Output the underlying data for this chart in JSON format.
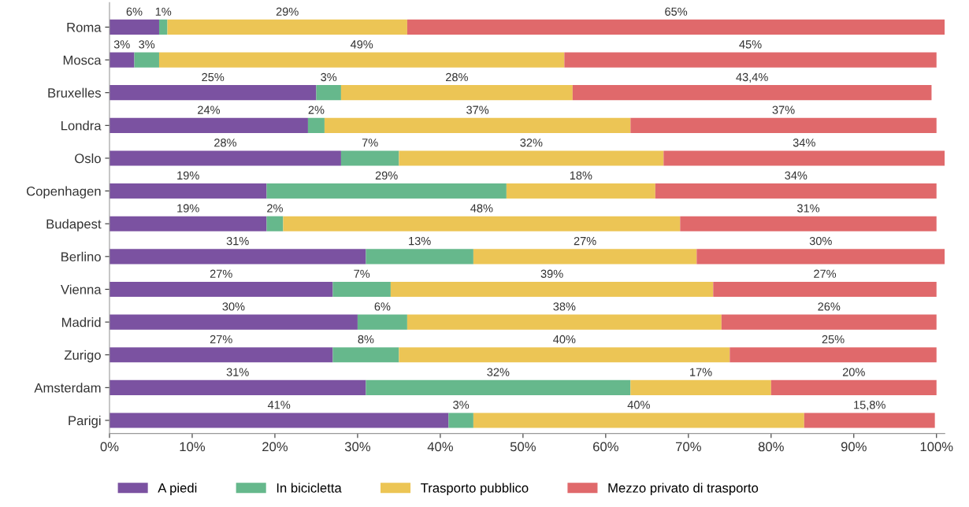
{
  "chart_data": {
    "type": "bar",
    "orientation": "horizontal",
    "stacked": true,
    "categories": [
      "Roma",
      "Mosca",
      "Bruxelles",
      "Londra",
      "Oslo",
      "Copenhagen",
      "Budapest",
      "Berlino",
      "Vienna",
      "Madrid",
      "Zurigo",
      "Amsterdam",
      "Parigi"
    ],
    "series": [
      {
        "name": "A piedi",
        "color": "#7b52a1",
        "values": [
          6,
          3,
          25,
          24,
          28,
          19,
          19,
          31,
          27,
          30,
          27,
          31,
          41
        ],
        "value_labels": [
          "6%",
          "3%",
          "25%",
          "24%",
          "28%",
          "19%",
          "19%",
          "31%",
          "27%",
          "30%",
          "27%",
          "31%",
          "41%"
        ]
      },
      {
        "name": "In bicicletta",
        "color": "#66b88c",
        "values": [
          1,
          3,
          3,
          2,
          7,
          29,
          2,
          13,
          7,
          6,
          8,
          32,
          3
        ],
        "value_labels": [
          "1%",
          "3%",
          "3%",
          "2%",
          "7%",
          "29%",
          "2%",
          "13%",
          "7%",
          "6%",
          "8%",
          "32%",
          "3%"
        ]
      },
      {
        "name": "Trasporto pubblico",
        "color": "#ecc555",
        "values": [
          29,
          49,
          28,
          37,
          32,
          18,
          48,
          27,
          39,
          38,
          40,
          17,
          40
        ],
        "value_labels": [
          "29%",
          "49%",
          "28%",
          "37%",
          "32%",
          "18%",
          "48%",
          "27%",
          "39%",
          "38%",
          "40%",
          "17%",
          "40%"
        ]
      },
      {
        "name": "Mezzo privato di trasporto",
        "color": "#e0696b",
        "values": [
          65,
          45,
          43.4,
          37,
          34,
          34,
          31,
          30,
          27,
          26,
          25,
          20,
          15.8
        ],
        "value_labels": [
          "65%",
          "45%",
          "43,4%",
          "37%",
          "34%",
          "34%",
          "31%",
          "30%",
          "27%",
          "26%",
          "25%",
          "20%",
          "15,8%"
        ]
      }
    ],
    "xlim": [
      0,
      101
    ],
    "xticks": [
      {
        "value": 0,
        "label": "0%"
      },
      {
        "value": 10,
        "label": "10%"
      },
      {
        "value": 20,
        "label": "20%"
      },
      {
        "value": 30,
        "label": "30%"
      },
      {
        "value": 40,
        "label": "40%"
      },
      {
        "value": 50,
        "label": "50%"
      },
      {
        "value": 60,
        "label": "60%"
      },
      {
        "value": 70,
        "label": "70%"
      },
      {
        "value": 80,
        "label": "80%"
      },
      {
        "value": 90,
        "label": "90%"
      },
      {
        "value": 100,
        "label": "100%"
      }
    ],
    "grid": false,
    "legend": "bottom"
  }
}
